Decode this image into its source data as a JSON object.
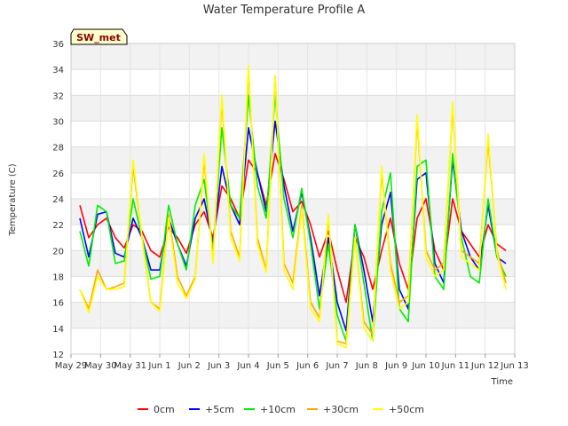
{
  "chart_data": {
    "type": "line",
    "title": "Water Temperature Profile A",
    "xlabel": "Time",
    "ylabel": "Temperature (C)",
    "ylim": [
      12,
      36
    ],
    "yticks": [
      12,
      14,
      16,
      18,
      20,
      22,
      24,
      26,
      28,
      30,
      32,
      34,
      36
    ],
    "xlim": [
      0,
      15
    ],
    "xticks": [
      {
        "x": 0,
        "label": "May 29"
      },
      {
        "x": 1,
        "label": "May 30"
      },
      {
        "x": 2,
        "label": "May 31"
      },
      {
        "x": 3,
        "label": "Jun 1"
      },
      {
        "x": 4,
        "label": "Jun 2"
      },
      {
        "x": 5,
        "label": "Jun 3"
      },
      {
        "x": 6,
        "label": "Jun 4"
      },
      {
        "x": 7,
        "label": "Jun 5"
      },
      {
        "x": 8,
        "label": "Jun 6"
      },
      {
        "x": 9,
        "label": "Jun 7"
      },
      {
        "x": 10,
        "label": "Jun 8"
      },
      {
        "x": 11,
        "label": "Jun 9"
      },
      {
        "x": 12,
        "label": "Jun 10"
      },
      {
        "x": 13,
        "label": "Jun 11"
      },
      {
        "x": 14,
        "label": "Jun 12"
      },
      {
        "x": 15,
        "label": "Jun 13"
      }
    ],
    "grid": true,
    "legend_position": "bottom",
    "badge": "SW_met",
    "series": [
      {
        "name": "0cm",
        "color": "#ff0000",
        "x": [
          0.3,
          0.6,
          0.9,
          1.2,
          1.5,
          1.8,
          2.1,
          2.4,
          2.7,
          3.0,
          3.3,
          3.6,
          3.9,
          4.2,
          4.5,
          4.8,
          5.1,
          5.4,
          5.7,
          6.0,
          6.3,
          6.6,
          6.9,
          7.2,
          7.5,
          7.8,
          8.1,
          8.4,
          8.7,
          9.0,
          9.3,
          9.6,
          9.9,
          10.2,
          10.5,
          10.8,
          11.1,
          11.4,
          11.7,
          12.0,
          12.3,
          12.6,
          12.9,
          13.2,
          13.5,
          13.8,
          14.1,
          14.4,
          14.7
        ],
        "y": [
          23.5,
          21.0,
          22.0,
          22.5,
          21.0,
          20.2,
          22.0,
          21.5,
          20.0,
          19.5,
          21.8,
          21.0,
          19.8,
          22.0,
          23.0,
          21.0,
          25.0,
          24.0,
          22.5,
          27.0,
          26.0,
          23.5,
          27.5,
          25.5,
          23.0,
          23.8,
          22.0,
          19.5,
          21.5,
          18.5,
          16.0,
          21.0,
          19.5,
          17.0,
          20.0,
          22.5,
          19.0,
          17.0,
          22.5,
          24.0,
          20.0,
          18.5,
          24.0,
          21.5,
          20.5,
          19.5,
          22.0,
          20.5,
          20.0
        ]
      },
      {
        "name": "+5cm",
        "color": "#0000ff",
        "x": [
          0.3,
          0.6,
          0.9,
          1.2,
          1.5,
          1.8,
          2.1,
          2.4,
          2.7,
          3.0,
          3.3,
          3.6,
          3.9,
          4.2,
          4.5,
          4.8,
          5.1,
          5.4,
          5.7,
          6.0,
          6.3,
          6.6,
          6.9,
          7.2,
          7.5,
          7.8,
          8.1,
          8.4,
          8.7,
          9.0,
          9.3,
          9.6,
          9.9,
          10.2,
          10.5,
          10.8,
          11.1,
          11.4,
          11.7,
          12.0,
          12.3,
          12.6,
          12.9,
          13.2,
          13.5,
          13.8,
          14.1,
          14.4,
          14.7
        ],
        "y": [
          22.5,
          19.5,
          22.8,
          23.0,
          19.8,
          19.5,
          22.5,
          21.0,
          18.5,
          18.5,
          22.5,
          20.5,
          18.8,
          22.5,
          24.0,
          20.5,
          26.5,
          23.5,
          22.0,
          29.5,
          26.0,
          23.0,
          30.0,
          25.0,
          21.5,
          24.5,
          21.0,
          16.5,
          21.0,
          16.0,
          13.8,
          22.0,
          18.5,
          14.5,
          22.0,
          24.5,
          17.0,
          15.5,
          25.5,
          26.0,
          19.0,
          17.5,
          27.0,
          21.5,
          19.5,
          18.5,
          23.5,
          19.5,
          19.0
        ]
      },
      {
        "name": "+10cm",
        "color": "#00ee00",
        "x": [
          0.3,
          0.6,
          0.9,
          1.2,
          1.5,
          1.8,
          2.1,
          2.4,
          2.7,
          3.0,
          3.3,
          3.6,
          3.9,
          4.2,
          4.5,
          4.8,
          5.1,
          5.4,
          5.7,
          6.0,
          6.3,
          6.6,
          6.9,
          7.2,
          7.5,
          7.8,
          8.1,
          8.4,
          8.7,
          9.0,
          9.3,
          9.6,
          9.9,
          10.2,
          10.5,
          10.8,
          11.1,
          11.4,
          11.7,
          12.0,
          12.3,
          12.6,
          12.9,
          13.2,
          13.5,
          13.8,
          14.1,
          14.4,
          14.7
        ],
        "y": [
          21.5,
          18.8,
          23.5,
          23.0,
          19.0,
          19.2,
          24.0,
          21.0,
          17.8,
          18.0,
          23.5,
          20.5,
          18.5,
          23.5,
          25.5,
          20.0,
          29.5,
          23.5,
          22.5,
          32.0,
          25.0,
          22.5,
          32.0,
          24.0,
          21.0,
          24.8,
          20.5,
          15.5,
          20.5,
          15.0,
          13.0,
          22.0,
          17.5,
          13.0,
          23.0,
          26.0,
          15.5,
          14.5,
          26.5,
          27.0,
          18.0,
          17.0,
          27.5,
          21.0,
          18.0,
          17.5,
          24.0,
          19.5,
          18.0
        ]
      },
      {
        "name": "+30cm",
        "color": "#ffa500",
        "x": [
          0.3,
          0.6,
          0.9,
          1.2,
          1.5,
          1.8,
          2.1,
          2.4,
          2.7,
          3.0,
          3.3,
          3.6,
          3.9,
          4.2,
          4.5,
          4.8,
          5.1,
          5.4,
          5.7,
          6.0,
          6.3,
          6.6,
          6.9,
          7.2,
          7.5,
          7.8,
          8.1,
          8.4,
          8.7,
          9.0,
          9.3,
          9.6,
          9.9,
          10.2,
          10.5,
          10.8,
          11.1,
          11.4,
          11.7,
          12.0,
          12.3,
          12.6,
          12.9,
          13.2,
          13.5,
          13.8,
          14.1,
          14.4,
          14.7
        ],
        "y": [
          17.0,
          15.5,
          18.5,
          17.0,
          17.2,
          17.5,
          26.5,
          21.0,
          16.0,
          15.5,
          22.8,
          18.0,
          16.5,
          18.0,
          27.0,
          19.5,
          31.5,
          21.5,
          19.5,
          34.0,
          21.0,
          18.5,
          33.5,
          19.0,
          17.5,
          23.5,
          16.0,
          14.8,
          22.5,
          13.0,
          12.8,
          21.0,
          14.5,
          13.5,
          26.0,
          19.0,
          16.0,
          16.5,
          30.0,
          20.0,
          18.5,
          19.0,
          31.0,
          20.0,
          19.5,
          19.0,
          28.5,
          20.0,
          17.5
        ]
      },
      {
        "name": "+50cm",
        "color": "#ffff00",
        "x": [
          0.3,
          0.6,
          0.9,
          1.2,
          1.5,
          1.8,
          2.1,
          2.4,
          2.7,
          3.0,
          3.3,
          3.6,
          3.9,
          4.2,
          4.5,
          4.8,
          5.1,
          5.4,
          5.7,
          6.0,
          6.3,
          6.6,
          6.9,
          7.2,
          7.5,
          7.8,
          8.1,
          8.4,
          8.7,
          9.0,
          9.3,
          9.6,
          9.9,
          10.2,
          10.5,
          10.8,
          11.1,
          11.4,
          11.7,
          12.0,
          12.3,
          12.6,
          12.9,
          13.2,
          13.5,
          13.8,
          14.1,
          14.4,
          14.7
        ],
        "y": [
          17.0,
          15.2,
          18.0,
          17.0,
          17.0,
          17.2,
          27.0,
          21.0,
          16.0,
          15.3,
          22.5,
          17.5,
          16.3,
          17.8,
          27.5,
          19.0,
          32.0,
          21.0,
          19.2,
          34.3,
          20.5,
          18.3,
          33.5,
          18.5,
          17.0,
          23.2,
          15.5,
          14.5,
          22.8,
          12.8,
          12.5,
          21.0,
          14.0,
          13.0,
          26.5,
          18.5,
          15.5,
          16.0,
          30.5,
          19.5,
          18.0,
          18.5,
          31.5,
          19.5,
          19.0,
          18.5,
          29.0,
          19.8,
          17.0
        ]
      }
    ]
  }
}
